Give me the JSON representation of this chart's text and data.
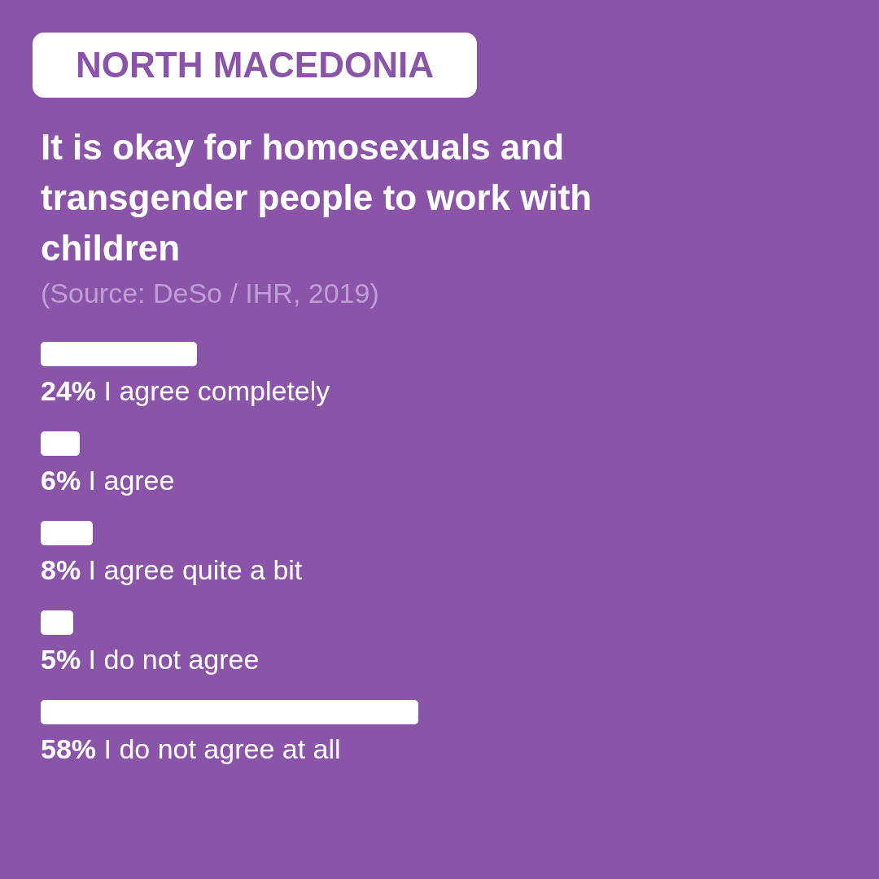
{
  "chart_data": {
    "type": "bar",
    "orientation": "horizontal",
    "title": "NORTH MACEDONIA",
    "subtitle": "It is okay for homosexuals and transgender people to work with children",
    "annotations": [
      "(Source: DeSo / IHR, 2019)"
    ],
    "categories": [
      "I agree completely",
      "I agree",
      "I agree quite a bit",
      "I do not agree",
      "I do not agree at all"
    ],
    "values": [
      24,
      6,
      8,
      5,
      58
    ],
    "value_labels": [
      "24%",
      "6%",
      "8%",
      "5%",
      "58%"
    ],
    "color": "#ffffff"
  }
}
